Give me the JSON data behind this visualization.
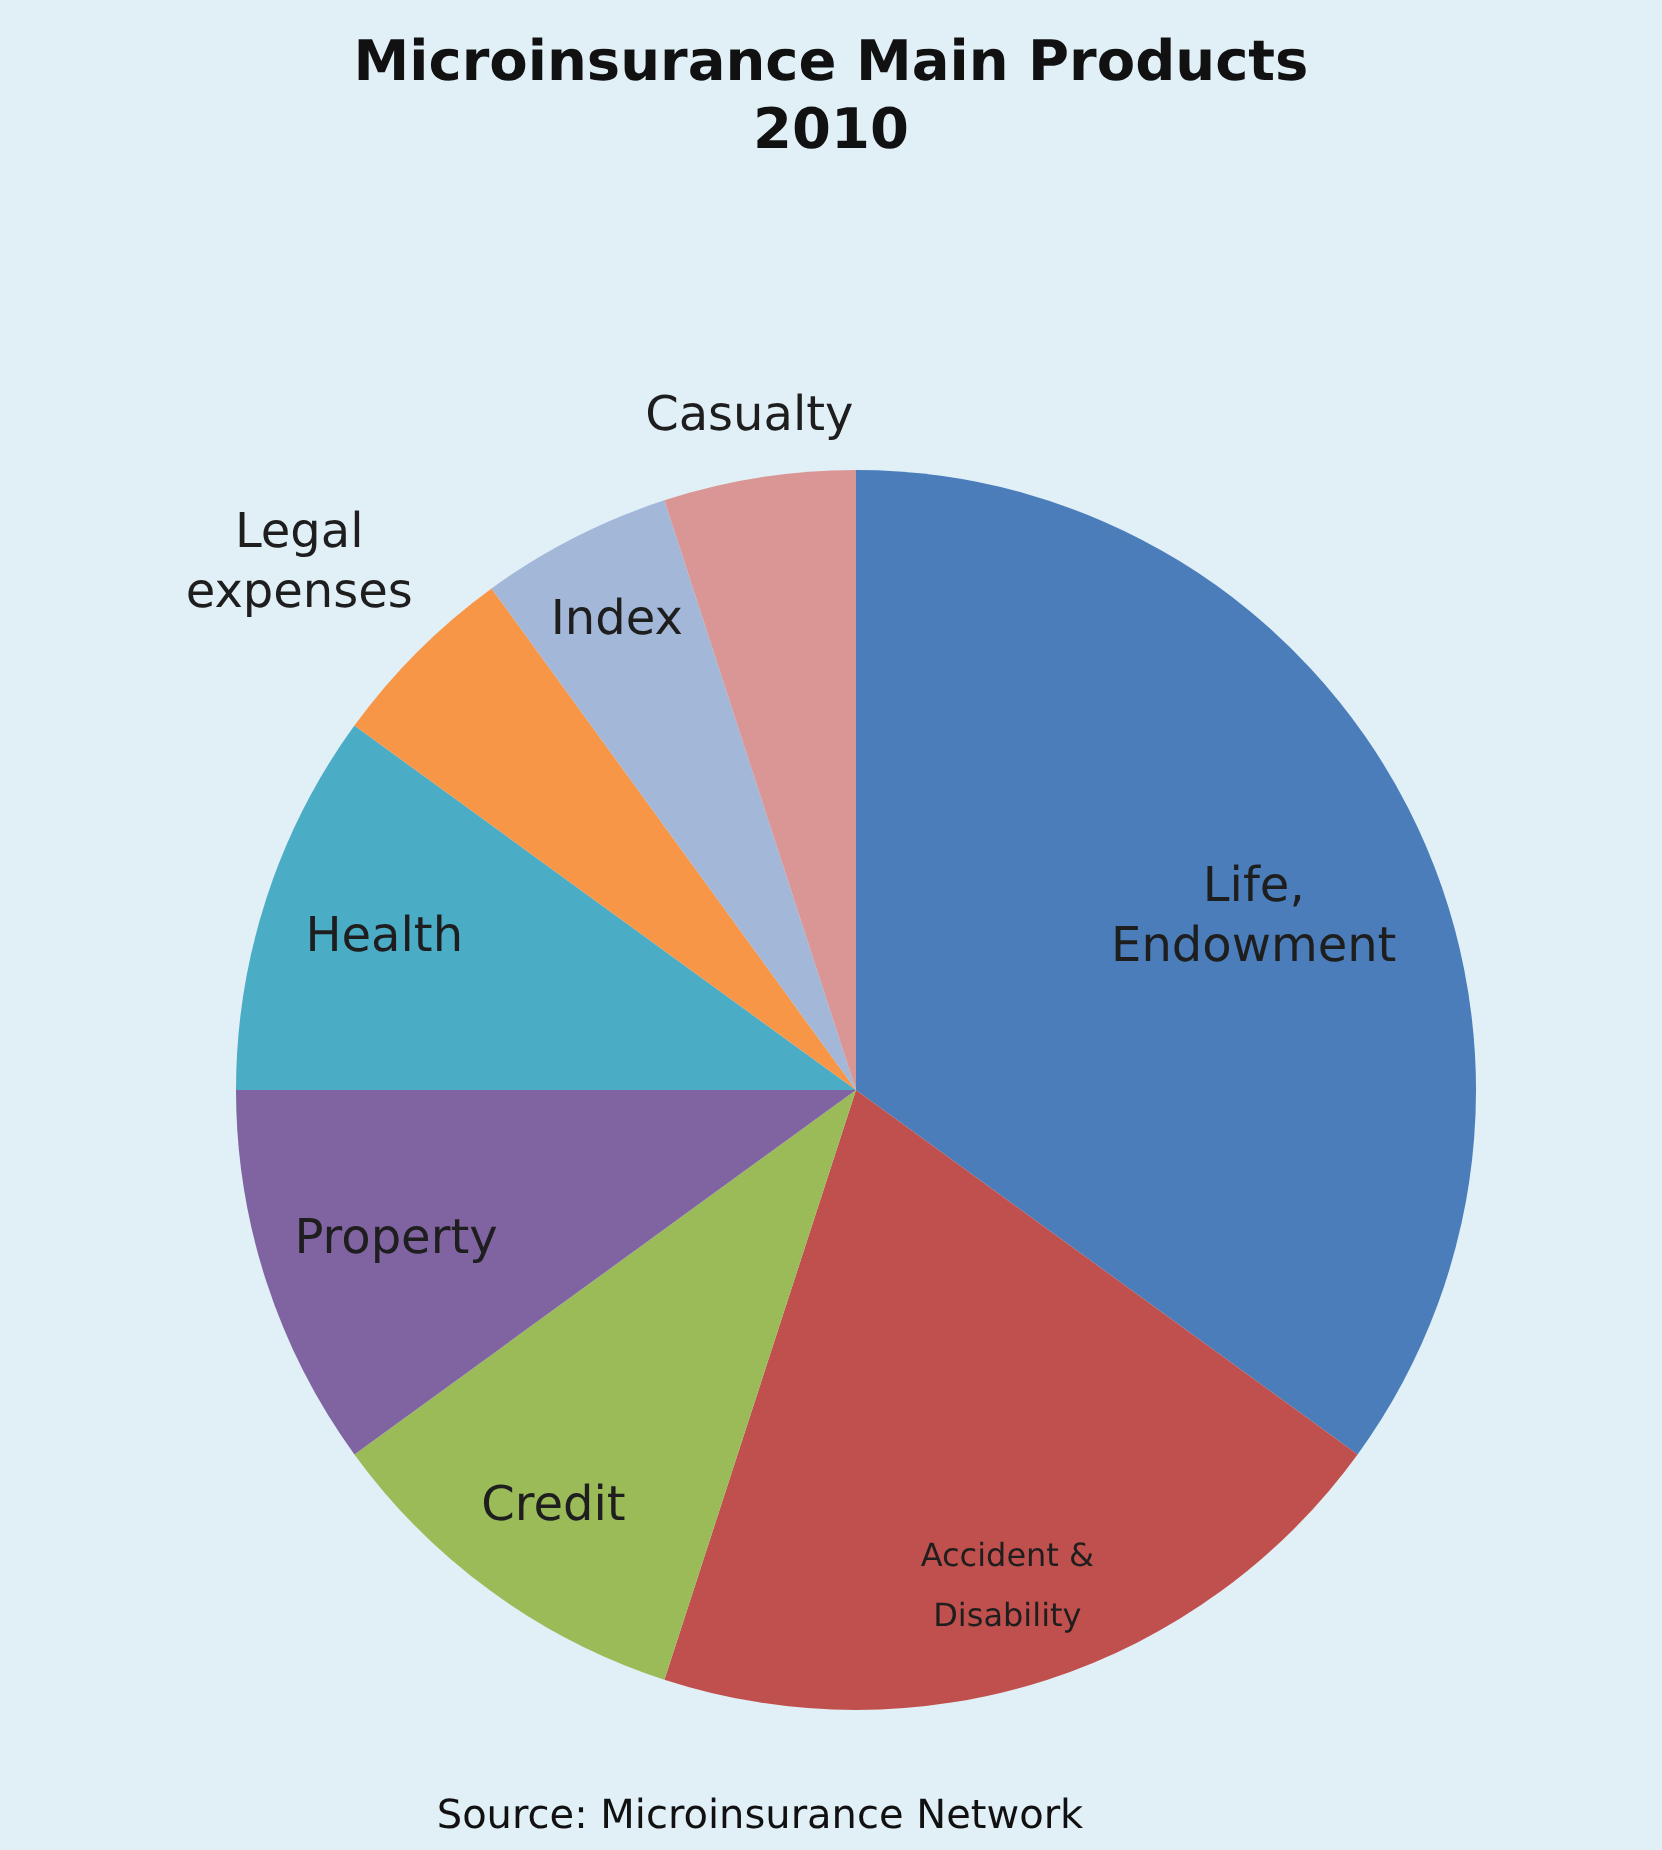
{
  "chart_data": {
    "type": "pie",
    "title": "Microinsurance Main Products 2010",
    "categories": [
      "Life, Endowment",
      "Accident & Disability",
      "Credit",
      "Property",
      "Health",
      "Legal expenses",
      "Index",
      "Casualty"
    ],
    "values": [
      35,
      20,
      10,
      10,
      10,
      5,
      5,
      5
    ],
    "colors": [
      "#4a7dba",
      "#c0504d",
      "#9bbb59",
      "#8064a2",
      "#4bacc6",
      "#f79646",
      "#a3b7d9",
      "#d99694"
    ],
    "annotations": [
      "Source: Microinsurance Network"
    ]
  }
}
